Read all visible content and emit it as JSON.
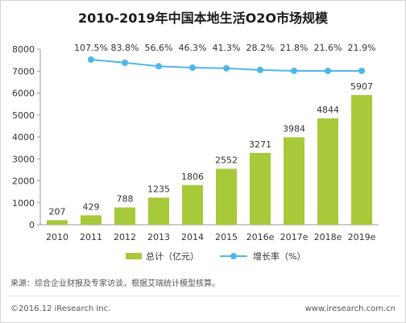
{
  "chart_data": {
    "type": "bar",
    "title": "2010-2019年中国本地生活O2O市场规模",
    "categories": [
      "2010",
      "2011",
      "2012",
      "2013",
      "2014",
      "2015",
      "2016e",
      "2017e",
      "2018e",
      "2019e"
    ],
    "ylim": [
      0,
      8000
    ],
    "yticks": [
      0,
      1000,
      2000,
      3000,
      4000,
      5000,
      6000,
      7000,
      8000
    ],
    "grid": false,
    "legend_position": "bottom",
    "series": [
      {
        "name": "总计（亿元）",
        "type": "bar",
        "color": "#a7c93a",
        "values": [
          207,
          429,
          788,
          1235,
          1806,
          2552,
          3271,
          3984,
          4844,
          5907
        ],
        "labels": [
          "207",
          "429",
          "788",
          "1235",
          "1806",
          "2552",
          "3271",
          "3984",
          "4844",
          "5907"
        ]
      },
      {
        "name": "增长率（%）",
        "type": "line",
        "color": "#4db8e8",
        "values": [
          null,
          107.5,
          83.8,
          56.6,
          46.3,
          41.3,
          28.2,
          21.8,
          21.6,
          21.9
        ],
        "labels": [
          null,
          "107.5%",
          "83.8%",
          "56.6%",
          "46.3%",
          "41.3%",
          "28.2%",
          "21.8%",
          "21.6%",
          "21.9%"
        ]
      }
    ]
  },
  "footer": {
    "source": "来源：综合企业财报及专家访谈，根据艾瑞统计模型核算。",
    "copyright": "©2016.12 iResearch Inc.",
    "website": "www.iresearch.com.cn"
  }
}
